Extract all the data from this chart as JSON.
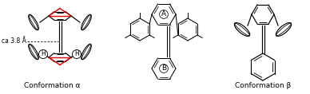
{
  "title_left": "Conformation α",
  "title_right": "Conformation β",
  "annotation_distance": "ca 3.8 Å",
  "label_A": "A",
  "label_B": "B",
  "bg_color": "#ffffff",
  "black": "#000000",
  "red": "#dd0000",
  "font_size_label": 6.5,
  "font_size_AB": 6.5,
  "font_size_annot": 5.5,
  "font_size_H": 5.5
}
